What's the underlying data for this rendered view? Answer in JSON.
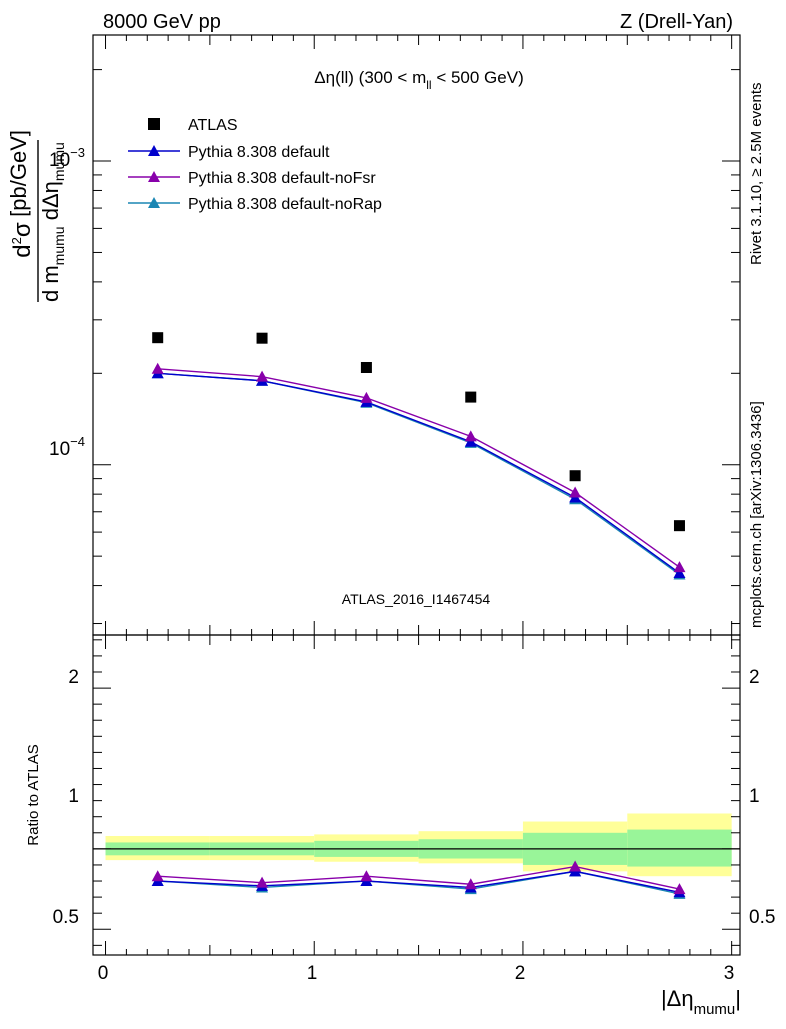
{
  "header": {
    "left": "8000 GeV pp",
    "right": "Z (Drell-Yan)"
  },
  "side_labels": {
    "rivet": "Rivet 3.1.10, ≥ 2.5M events",
    "mcplots": "mcplots.cern.ch [arXiv:1306.3436]"
  },
  "plot_title": {
    "prefix": "Δη(ll) (300 < m",
    "sub": "ll",
    "suffix": " < 500 GeV)"
  },
  "watermark": "ATLAS_2016_I1467454",
  "legend": [
    {
      "label": "ATLAS",
      "marker": "square",
      "color": "#000000"
    },
    {
      "label": "Pythia 8.308 default",
      "marker": "triangle",
      "color": "#0000cc"
    },
    {
      "label": "Pythia 8.308 default-noFsr",
      "marker": "triangle",
      "color": "#8800aa"
    },
    {
      "label": "Pythia 8.308 default-noRap",
      "marker": "triangle",
      "color": "#1a86b3"
    }
  ],
  "y_axis_main": {
    "label_parts": {
      "d2": "d",
      "sup2": "2",
      "sigma": "σ",
      "den_d": "d m",
      "den_sub1": "mumu",
      "den_mid": " dΔη",
      "den_sub2": "mumu",
      "units": "[pb/GeV]"
    },
    "ticks": [
      {
        "base": "10",
        "exp": "−3"
      },
      {
        "base": "10",
        "exp": "−4"
      }
    ]
  },
  "y_axis_ratio": {
    "label": "Ratio to ATLAS",
    "ticks": [
      "2",
      "1",
      "0.5"
    ]
  },
  "x_axis": {
    "label_main": "|Δη",
    "label_sub": "mumu",
    "label_end": "|",
    "ticks": [
      "0",
      "1",
      "2",
      "3"
    ]
  },
  "chart_data": [
    {
      "type": "scatter",
      "panel": "main",
      "log_y": true,
      "ylim": [
        2.75e-05,
        0.0026
      ],
      "xlim": [
        -0.06,
        3.04
      ],
      "x": [
        0.25,
        0.75,
        1.25,
        1.75,
        2.25,
        2.75
      ],
      "series": [
        {
          "name": "ATLAS",
          "values": [
            0.000262,
            0.000261,
            0.000209,
            0.000167,
            9.2e-05,
            6.3e-05
          ]
        },
        {
          "name": "Pythia 8.308 default",
          "values": [
            0.0002,
            0.000189,
            0.000161,
            0.000119,
            7.8e-05,
            4.4e-05
          ]
        },
        {
          "name": "Pythia 8.308 default-noFsr",
          "values": [
            0.000207,
            0.000195,
            0.000166,
            0.000124,
            8.1e-05,
            4.6e-05
          ]
        },
        {
          "name": "Pythia 8.308 default-noRap",
          "values": [
            0.0002,
            0.000189,
            0.00016,
            0.000118,
            7.7e-05,
            4.35e-05
          ]
        }
      ]
    },
    {
      "type": "line",
      "panel": "ratio",
      "ylim": [
        0.34,
        2.33
      ],
      "xlim": [
        -0.06,
        3.04
      ],
      "x": [
        0.25,
        0.75,
        1.25,
        1.75,
        2.25,
        2.75
      ],
      "bins": [
        [
          0,
          0.5
        ],
        [
          0.5,
          1.0
        ],
        [
          1.0,
          1.5
        ],
        [
          1.5,
          2.0
        ],
        [
          2.0,
          2.5
        ],
        [
          2.5,
          3.0
        ]
      ],
      "band_inner": [
        [
          0.96,
          1.04
        ],
        [
          0.96,
          1.04
        ],
        [
          0.95,
          1.05
        ],
        [
          0.94,
          1.06
        ],
        [
          0.9,
          1.1
        ],
        [
          0.89,
          1.12
        ]
      ],
      "band_outer": [
        [
          0.93,
          1.08
        ],
        [
          0.93,
          1.08
        ],
        [
          0.92,
          1.09
        ],
        [
          0.91,
          1.11
        ],
        [
          0.86,
          1.17
        ],
        [
          0.83,
          1.22
        ]
      ],
      "series": [
        {
          "name": "Pythia 8.308 default",
          "values": [
            0.8,
            0.77,
            0.8,
            0.76,
            0.86,
            0.73
          ]
        },
        {
          "name": "Pythia 8.308 default-noFsr",
          "values": [
            0.83,
            0.79,
            0.83,
            0.78,
            0.89,
            0.75
          ]
        },
        {
          "name": "Pythia 8.308 default-noRap",
          "values": [
            0.8,
            0.76,
            0.8,
            0.75,
            0.86,
            0.72
          ]
        }
      ]
    }
  ],
  "colors": {
    "atlas": "#000000",
    "default": "#0000cc",
    "noFsr": "#8800aa",
    "noRap": "#1a86b3",
    "band_inner": "#99f599",
    "band_outer": "#ffff99",
    "watermark": "#999999",
    "side_text": "#777777"
  }
}
